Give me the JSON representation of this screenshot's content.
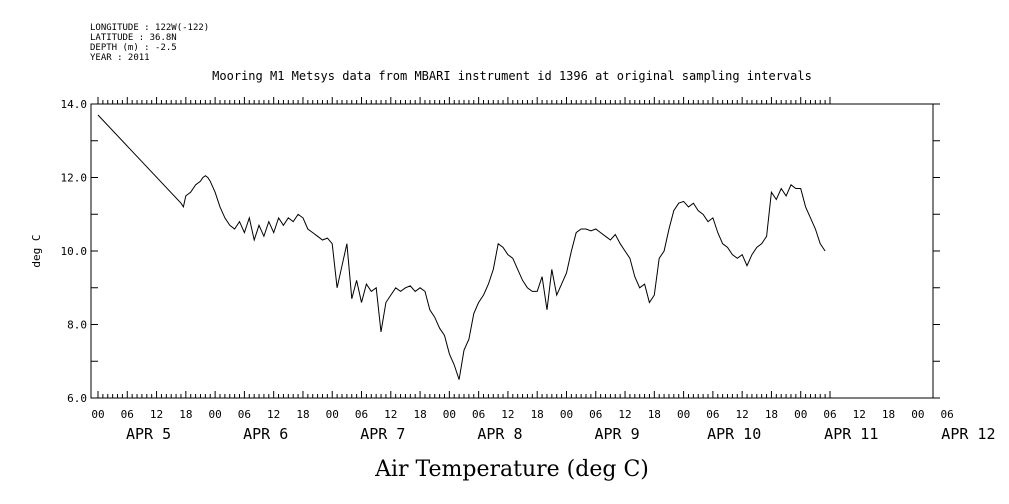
{
  "meta": {
    "longitude": "LONGITUDE : 122W(-122)",
    "latitude": "LATITUDE : 36.8N",
    "depth": "DEPTH (m) : -2.5",
    "year": "YEAR : 2011"
  },
  "chart_data": {
    "type": "line",
    "title": "Mooring M1 Metsys data from MBARI instrument id 1396 at original sampling intervals",
    "xlabel": "Air Temperature (deg C)",
    "ylabel": "deg C",
    "ylim": [
      6.0,
      14.0
    ],
    "yticks": [
      "6.0",
      "8.0",
      "10.0",
      "12.0",
      "14.0"
    ],
    "xlim_hours": [
      0,
      150
    ],
    "hour_ticks": [
      "00",
      "06",
      "12",
      "18",
      "00",
      "06",
      "12",
      "18",
      "00",
      "06",
      "12",
      "18",
      "00",
      "06",
      "12",
      "18",
      "00",
      "06",
      "12",
      "18",
      "00",
      "06",
      "12",
      "18",
      "00",
      "06",
      "12",
      "18",
      "00",
      "06"
    ],
    "day_labels": [
      "APR  5",
      "APR  6",
      "APR  7",
      "APR  8",
      "APR  9",
      "APR 10",
      "APR 11",
      "APR 12"
    ],
    "grid": false,
    "series": [
      {
        "x": [
          0,
          17,
          17.5,
          18,
          19,
          20,
          21,
          21.5,
          22,
          22.5,
          23,
          24,
          25,
          26,
          27,
          28,
          29,
          30,
          31,
          32,
          33,
          34,
          35,
          36,
          37,
          38,
          39,
          40,
          41,
          42,
          43,
          44,
          45,
          46,
          47,
          48,
          49,
          50,
          51,
          52,
          53,
          54,
          55,
          56,
          57,
          58,
          59,
          60,
          61,
          62,
          63,
          64,
          65,
          66,
          67,
          68,
          69,
          70,
          71,
          72,
          73,
          74,
          75,
          76,
          77,
          78,
          79,
          80,
          81,
          82,
          83,
          84,
          85,
          86,
          87,
          88,
          89,
          90,
          91,
          92,
          93,
          94,
          95,
          96,
          97,
          98,
          99,
          100,
          101,
          102,
          103,
          104,
          105,
          106,
          107,
          108,
          109,
          110,
          111,
          112,
          113,
          114,
          115,
          116,
          117,
          118,
          119,
          120,
          121,
          122,
          123,
          124,
          125,
          126,
          127,
          128,
          129,
          130,
          131,
          132,
          133,
          134,
          135,
          136,
          137,
          138,
          139,
          140,
          141,
          142,
          143,
          144,
          145,
          146,
          147,
          148,
          149
        ],
        "y": [
          13.7,
          11.3,
          11.2,
          11.5,
          11.6,
          11.8,
          11.9,
          12.0,
          12.05,
          12.0,
          11.9,
          11.6,
          11.2,
          10.9,
          10.7,
          10.6,
          10.8,
          10.5,
          10.9,
          10.3,
          10.7,
          10.4,
          10.8,
          10.5,
          10.9,
          10.7,
          10.9,
          10.8,
          11.0,
          10.9,
          10.6,
          10.5,
          10.4,
          10.3,
          10.35,
          10.2,
          9.0,
          9.6,
          10.2,
          8.7,
          9.2,
          8.6,
          9.1,
          8.9,
          9.0,
          7.8,
          8.6,
          8.8,
          9.0,
          8.9,
          9.0,
          9.05,
          8.9,
          9.0,
          8.9,
          8.4,
          8.2,
          7.9,
          7.7,
          7.2,
          6.9,
          6.5,
          7.3,
          7.6,
          8.3,
          8.6,
          8.8,
          9.1,
          9.5,
          10.2,
          10.1,
          9.9,
          9.8,
          9.5,
          9.2,
          9.0,
          8.9,
          8.9,
          9.3,
          8.4,
          9.5,
          8.8,
          9.1,
          9.4,
          10.0,
          10.5,
          10.6,
          10.6,
          10.55,
          10.6,
          10.5,
          10.4,
          10.3,
          10.45,
          10.2,
          10.0,
          9.8,
          9.3,
          9.0,
          9.1,
          8.6,
          8.8,
          9.8,
          10.0,
          10.6,
          11.1,
          11.3,
          11.35,
          11.2,
          11.3,
          11.1,
          11.0,
          10.8,
          10.9,
          10.5,
          10.2,
          10.1,
          9.9,
          9.8,
          9.9,
          9.6,
          9.9,
          10.1,
          10.2,
          10.4,
          11.6,
          11.4,
          11.7,
          11.5,
          11.8,
          11.7,
          11.7,
          11.2,
          10.9,
          10.6,
          10.2,
          10.0
        ]
      }
    ]
  }
}
